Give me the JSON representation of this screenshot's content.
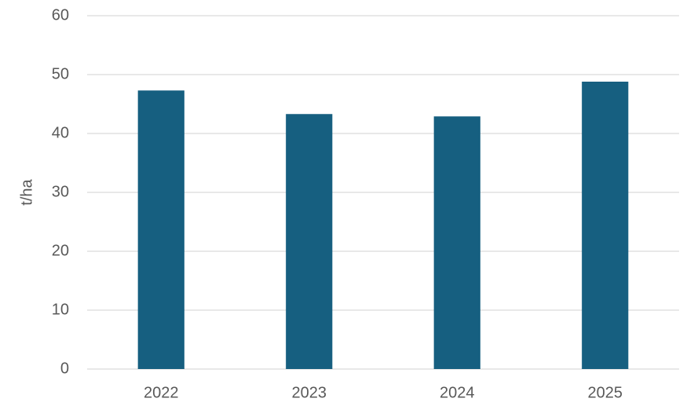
{
  "chart_data": {
    "type": "bar",
    "ylabel": "t/ha",
    "categories": [
      "2022",
      "2023",
      "2024",
      "2025"
    ],
    "values": [
      47.3,
      43.3,
      42.9,
      48.8
    ],
    "color": "#165f80",
    "ylim": [
      0,
      60
    ],
    "yticks": [
      0,
      10,
      20,
      30,
      40,
      50,
      60
    ],
    "grid": true
  }
}
